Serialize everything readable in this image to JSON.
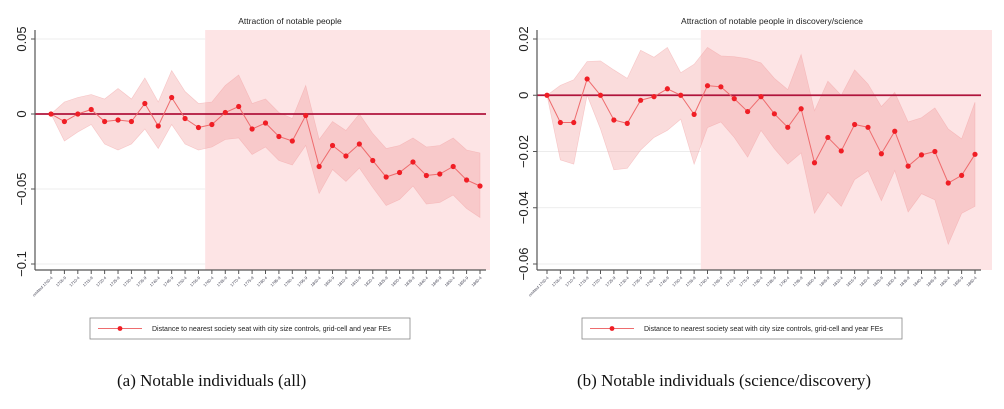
{
  "chart_data": [
    {
      "id": "a",
      "type": "line",
      "title": "Attraction of notable people",
      "caption": "(a) Notable individuals (all)",
      "xlabel": "",
      "ylabel": "",
      "ylim": [
        -0.1,
        0.05
      ],
      "yticks": [
        0.05,
        0,
        -0.05,
        -0.1
      ],
      "ytick_labels": [
        "0.05",
        "0",
        "-0.05",
        "-0.1"
      ],
      "shaded_region_start_index": 12,
      "reference_line": 0,
      "x": [
        "omitted 1700-4",
        "1705-9",
        "1710-4",
        "1715-9",
        "1720-4",
        "1725-9",
        "1730-4",
        "1735-9",
        "1740-4",
        "1745-9",
        "1750-4",
        "1755-9",
        "1760-4",
        "1765-9",
        "1770-4",
        "1775-9",
        "1780-4",
        "1785-9",
        "1790-4",
        "1795-9",
        "1800-4",
        "1805-9",
        "1810-4",
        "1815-9",
        "1820-4",
        "1825-9",
        "1830-4",
        "1835-9",
        "1840-4",
        "1845-9",
        "1850-4",
        "1855-9",
        "1860-4"
      ],
      "series": [
        {
          "name": "Distance to nearest society seat with city size controls, grid-cell and year FEs",
          "values": [
            0,
            -0.005,
            0,
            0.003,
            -0.005,
            -0.004,
            -0.005,
            0.007,
            -0.008,
            0.011,
            -0.003,
            -0.009,
            -0.007,
            0.001,
            0.005,
            -0.01,
            -0.006,
            -0.015,
            -0.018,
            -0.001,
            -0.035,
            -0.021,
            -0.028,
            -0.02,
            -0.031,
            -0.042,
            -0.039,
            -0.032,
            -0.041,
            -0.04,
            -0.035,
            -0.044,
            -0.048
          ],
          "ci_upper": [
            0,
            0.008,
            0.011,
            0.013,
            0.01,
            0.017,
            0.01,
            0.024,
            0.008,
            0.029,
            0.015,
            0.007,
            0.008,
            0.019,
            0.026,
            0.007,
            0.01,
            0.001,
            -0.003,
            0.019,
            -0.017,
            -0.005,
            -0.011,
            0.0,
            -0.013,
            -0.023,
            -0.021,
            -0.016,
            -0.022,
            -0.021,
            -0.016,
            -0.024,
            -0.026
          ],
          "ci_lower": [
            0,
            -0.018,
            -0.012,
            -0.007,
            -0.02,
            -0.024,
            -0.02,
            -0.01,
            -0.023,
            -0.007,
            -0.02,
            -0.024,
            -0.022,
            -0.017,
            -0.016,
            -0.027,
            -0.022,
            -0.031,
            -0.034,
            -0.021,
            -0.053,
            -0.037,
            -0.045,
            -0.036,
            -0.049,
            -0.061,
            -0.057,
            -0.048,
            -0.06,
            -0.059,
            -0.054,
            -0.063,
            -0.069
          ]
        }
      ],
      "legend": "bottom",
      "grid": true
    },
    {
      "id": "b",
      "type": "line",
      "title": "Attraction of notable people in discovery/science",
      "caption": "(b) Notable individuals (science/discovery)",
      "xlabel": "",
      "ylabel": "",
      "ylim": [
        -0.06,
        0.02
      ],
      "yticks": [
        0.02,
        0,
        -0.02,
        -0.04,
        -0.06
      ],
      "ytick_labels": [
        "0.02",
        "0",
        "-0.02",
        "-0.04",
        "-0.06"
      ],
      "shaded_region_start_index": 12,
      "reference_line": 0,
      "x": [
        "omitted 1700-4",
        "1705-9",
        "1710-4",
        "1715-9",
        "1720-4",
        "1725-9",
        "1730-4",
        "1735-9",
        "1740-4",
        "1745-9",
        "1750-4",
        "1755-9",
        "1760-4",
        "1765-9",
        "1770-4",
        "1775-9",
        "1780-4",
        "1785-9",
        "1790-4",
        "1795-9",
        "1800-4",
        "1805-9",
        "1810-4",
        "1815-9",
        "1820-4",
        "1825-9",
        "1830-4",
        "1835-9",
        "1840-4",
        "1845-9",
        "1850-4",
        "1855-9",
        "1860-4"
      ],
      "series": [
        {
          "name": "Distance to nearest society seat with city size controls, grid-cell and year FEs",
          "values": [
            0,
            -0.0097,
            -0.0097,
            0.0058,
            0,
            -0.0088,
            -0.01,
            -0.0018,
            -0.0005,
            0.0023,
            0,
            -0.0068,
            0.0034,
            0.003,
            -0.0012,
            -0.0058,
            -0.0005,
            -0.0066,
            -0.0114,
            -0.0048,
            -0.024,
            -0.015,
            -0.0198,
            -0.0104,
            -0.0114,
            -0.0208,
            -0.0128,
            -0.0252,
            -0.0212,
            -0.02,
            -0.0312,
            -0.0285,
            -0.021
          ],
          "ci_upper": [
            0,
            0.0035,
            0.0055,
            0.012,
            0.0122,
            0.009,
            0.006,
            0.016,
            0.0135,
            0.017,
            0.008,
            0.011,
            0.017,
            0.014,
            0.0137,
            0.013,
            0.0115,
            0.006,
            0.002,
            0.0145,
            -0.0055,
            0.005,
            0.0,
            0.009,
            0.004,
            -0.004,
            0.001,
            -0.0095,
            -0.008,
            -0.0045,
            -0.012,
            -0.0155,
            -0.0025
          ],
          "ci_lower": [
            0,
            -0.023,
            -0.0245,
            0.0,
            -0.012,
            -0.0265,
            -0.026,
            -0.0195,
            -0.015,
            -0.0125,
            -0.0085,
            -0.0245,
            -0.0115,
            -0.0095,
            -0.015,
            -0.022,
            -0.0125,
            -0.019,
            -0.0245,
            -0.0205,
            -0.042,
            -0.0345,
            -0.0395,
            -0.03,
            -0.0268,
            -0.0375,
            -0.0268,
            -0.0415,
            -0.035,
            -0.0372,
            -0.053,
            -0.042,
            -0.0395
          ]
        }
      ],
      "legend": "bottom",
      "grid": true
    }
  ]
}
